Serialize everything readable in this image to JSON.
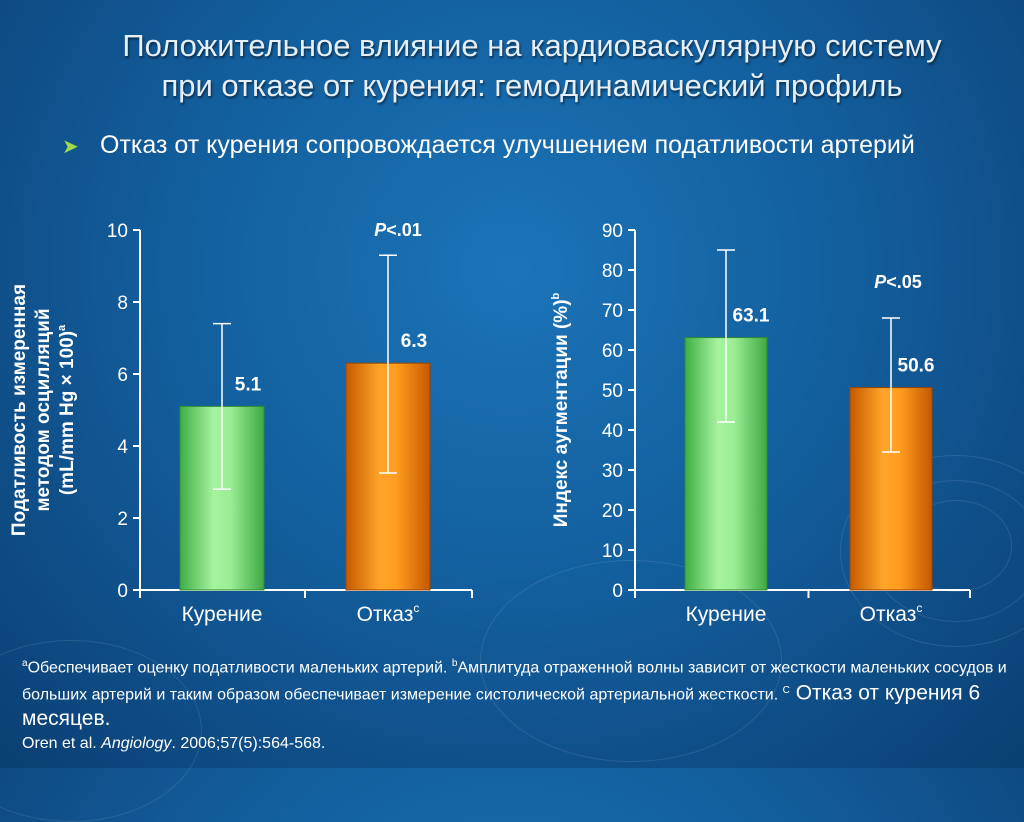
{
  "slide": {
    "title_line1": "Положительное влияние на кардиоваскулярную систему",
    "title_line2": "при отказе от курения: гемодинамический профиль",
    "bullet": "Отказ от курения сопровождается улучшением податливости артерий"
  },
  "chart_data": [
    {
      "type": "bar",
      "ylabel_lines": [
        "Податливость измеренная",
        "методом осцилляций",
        "(mL/mm Hg × 100)"
      ],
      "ylabel_sup": "a",
      "ylim": [
        0,
        10
      ],
      "yticks": [
        0,
        2,
        4,
        6,
        8,
        10
      ],
      "categories": [
        "Курение",
        "Отказ"
      ],
      "category_sup": [
        "",
        "c"
      ],
      "values": [
        5.1,
        6.3
      ],
      "value_labels": [
        "5.1",
        "6.3"
      ],
      "error_high": [
        7.4,
        9.3
      ],
      "error_low": [
        2.8,
        3.25
      ],
      "colors": [
        "#6bd96b",
        "#f08a0c"
      ],
      "pvalue_italic": "P",
      "pvalue_rest": "<.01"
    },
    {
      "type": "bar",
      "ylabel_lines": [
        "Индекс аугментации  (%)"
      ],
      "ylabel_sup": "b",
      "ylim": [
        0,
        90
      ],
      "yticks": [
        0,
        10,
        20,
        30,
        40,
        50,
        60,
        70,
        80,
        90
      ],
      "categories": [
        "Курение",
        "Отказ"
      ],
      "category_sup": [
        "",
        "c"
      ],
      "values": [
        63.1,
        50.6
      ],
      "value_labels": [
        "63.1",
        "50.6"
      ],
      "error_high": [
        85,
        68
      ],
      "error_low": [
        42,
        34.5
      ],
      "colors": [
        "#6bd96b",
        "#f08a0c"
      ],
      "pvalue_italic": "P",
      "pvalue_rest": "<.05"
    }
  ],
  "footnotes": {
    "a_mark": "a",
    "a_text": "Обеспечивает оценку податливости маленьких артерий. ",
    "b_mark": "b",
    "b_text": "Амплитуда отраженной волны зависит от жесткости маленьких сосудов и больших артерий и таким образом обеспечивает измерение систолической артериальной жесткости. ",
    "c_mark": "C",
    "c_text": " Отказ от курения 6 месяцев",
    "c_end": ".",
    "ref_authors": "Oren et al. ",
    "ref_journal": "Angiology",
    "ref_details": ". 2006;57(5):564-568."
  }
}
